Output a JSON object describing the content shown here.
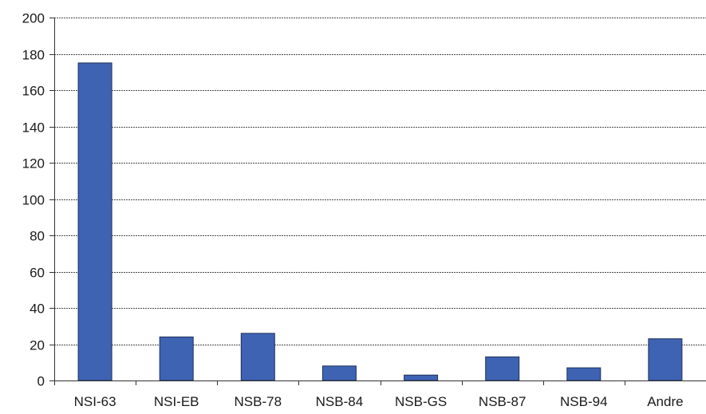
{
  "chart_data": {
    "type": "bar",
    "categories": [
      "NSI-63",
      "NSI-EB",
      "NSB-78",
      "NSB-84",
      "NSB-GS",
      "NSB-87",
      "NSB-94",
      "Andre"
    ],
    "values": [
      175,
      24,
      26,
      8,
      3,
      13,
      7,
      23
    ],
    "ylim": [
      0,
      200
    ],
    "yticks": [
      0,
      20,
      40,
      60,
      80,
      100,
      120,
      140,
      160,
      180,
      200
    ],
    "ytick_labels": [
      "0",
      "20",
      "40",
      "60",
      "80",
      "100",
      "120",
      "140",
      "160",
      "180",
      "200"
    ],
    "grid": true,
    "legend": "none",
    "bar_color": "#3e63b3",
    "bar_edge_color": "#1f2f57"
  }
}
